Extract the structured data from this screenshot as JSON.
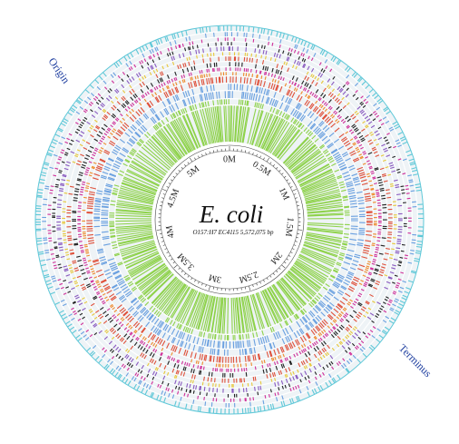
{
  "title": "E. coli",
  "subtitle": "O157:H7 EC4115  5,572,075 bp",
  "axis_ticks": [
    "0M",
    "0.5M",
    "1M",
    "1.5M",
    "2M",
    "2.5M",
    "3M",
    "3.5M",
    "4M",
    "4.5M",
    "5M"
  ],
  "markers": {
    "origin": "Origin",
    "terminus": "Terminus"
  },
  "colors": {
    "outer_ring": "#5fc8d8",
    "magenta": "#d0309a",
    "purple": "#8a5ac0",
    "yellow": "#e8c83a",
    "orange": "#f08a2a",
    "red": "#e0503a",
    "blue": "#6aa0e0",
    "green": "#8ed24a",
    "black": "#222222",
    "label_blue": "#1f3fa0"
  }
}
